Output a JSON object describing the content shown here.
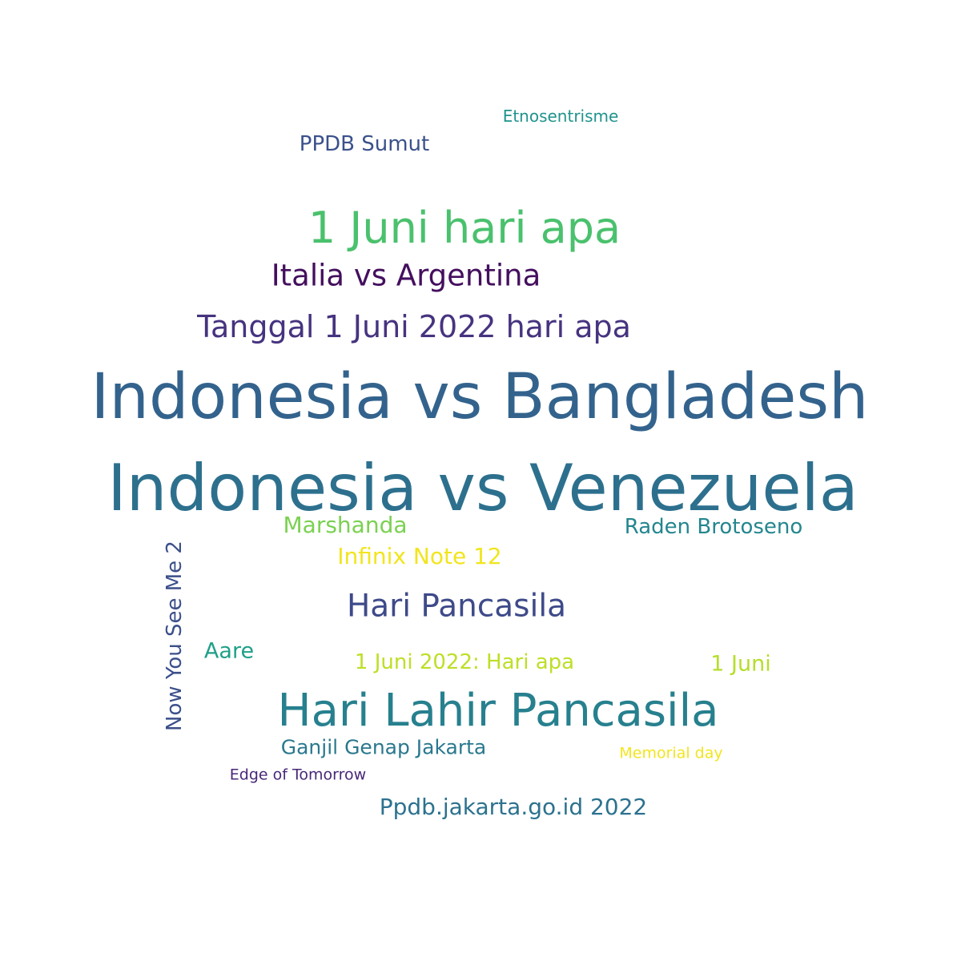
{
  "words": [
    {
      "text": "Indonesia vs Bangladesh",
      "color": "#33638d"
    },
    {
      "text": "Indonesia vs Venezuela",
      "color": "#2d708e"
    },
    {
      "text": "Hari Lahir Pancasila",
      "color": "#27808e"
    },
    {
      "text": "1 Juni hari apa",
      "color": "#4ac16d"
    },
    {
      "text": "Tanggal 1 Juni 2022 hari apa",
      "color": "#46337f"
    },
    {
      "text": "Italia vs Argentina",
      "color": "#440f5e"
    },
    {
      "text": "Hari Pancasila",
      "color": "#3e4a89"
    },
    {
      "text": "Now You See Me 2",
      "color": "#3b4f8a",
      "orientation": "vertical"
    },
    {
      "text": "1 Juni 2022: Hari apa",
      "color": "#bddf26"
    },
    {
      "text": "Ppdb.jakarta.go.id 2022",
      "color": "#2c728e"
    },
    {
      "text": "Raden Brotoseno",
      "color": "#24868e"
    },
    {
      "text": "Marshanda",
      "color": "#7ad151"
    },
    {
      "text": "Infinix Note 12",
      "color": "#f1e51d"
    },
    {
      "text": "Ganjil Genap Jakarta",
      "color": "#2a788e"
    },
    {
      "text": "PPDB Sumut",
      "color": "#3b518b"
    },
    {
      "text": "1 Juni",
      "color": "#b5de2b"
    },
    {
      "text": "Aare",
      "color": "#1fa088"
    },
    {
      "text": "Edge of Tomorrow",
      "color": "#482878"
    },
    {
      "text": "Memorial day",
      "color": "#f3e51e"
    },
    {
      "text": "Etnosentrisme",
      "color": "#20938c"
    }
  ]
}
